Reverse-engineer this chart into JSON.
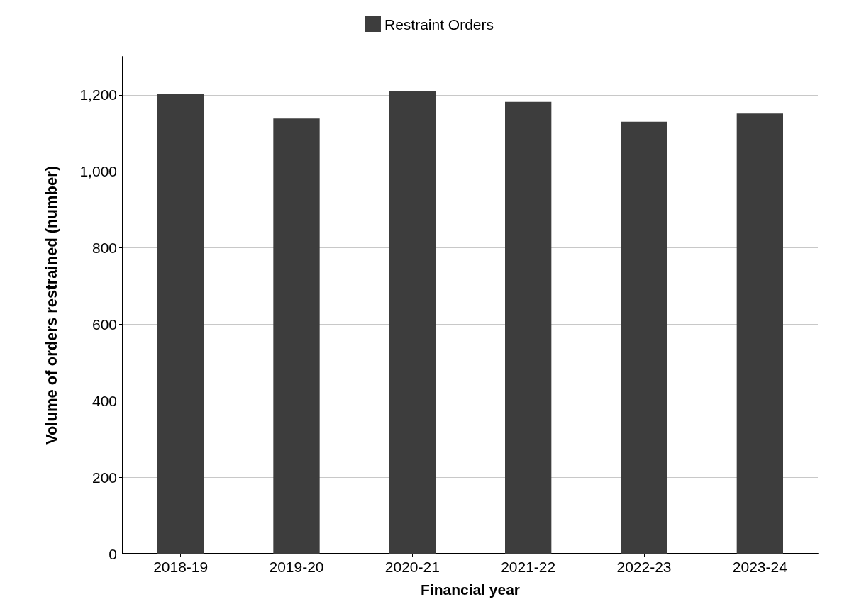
{
  "chart_data": {
    "type": "bar",
    "xlabel": "Financial year",
    "ylabel": "Volume of orders restrained (number)",
    "categories": [
      "2018-19",
      "2019-20",
      "2020-21",
      "2021-22",
      "2022-23",
      "2023-24"
    ],
    "series": [
      {
        "name": "Restraint Orders",
        "color": "#3d3d3d",
        "values": [
          1203,
          1138,
          1209,
          1182,
          1130,
          1151
        ]
      }
    ],
    "ylim": [
      0,
      1300
    ],
    "yticks": [
      {
        "value": 0,
        "label": "0"
      },
      {
        "value": 200,
        "label": "200"
      },
      {
        "value": 400,
        "label": "400"
      },
      {
        "value": 600,
        "label": "600"
      },
      {
        "value": 800,
        "label": "800"
      },
      {
        "value": 1000,
        "label": "1,000"
      },
      {
        "value": 1200,
        "label": "1,200"
      }
    ],
    "grid": "y",
    "legend": "top"
  }
}
